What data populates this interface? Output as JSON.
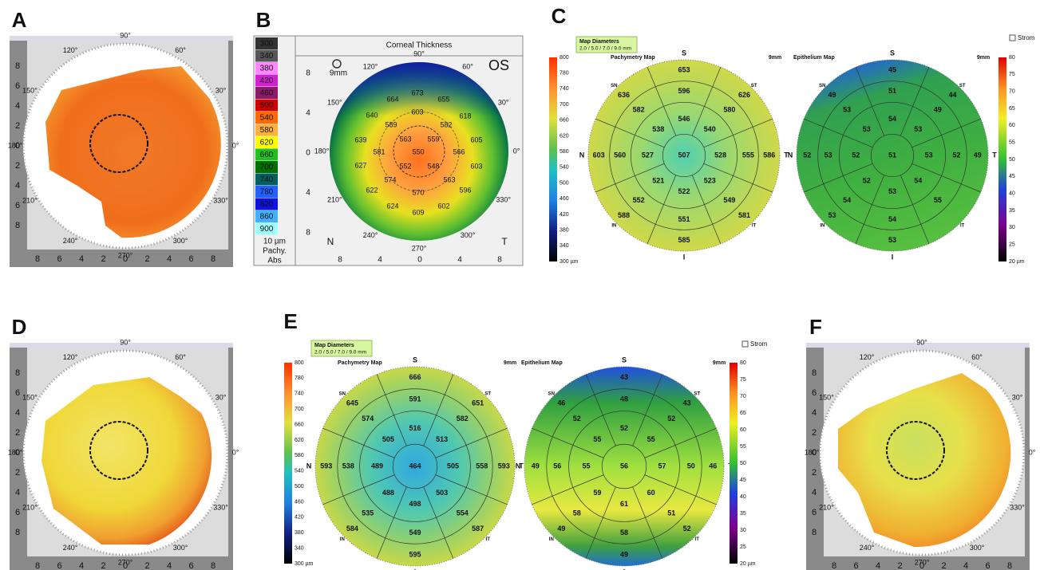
{
  "panels": {
    "A": {
      "letter": "A",
      "angles": [
        "90°",
        "60°",
        "30°",
        "0°",
        "330°",
        "300°",
        "270°",
        "240°",
        "210°",
        "180°",
        "150°",
        "120°"
      ],
      "xticks": [
        8,
        6,
        4,
        2,
        0,
        2,
        4,
        6,
        8
      ],
      "yticks": [
        8,
        6,
        4,
        2,
        0,
        2,
        4,
        6,
        8
      ]
    },
    "B": {
      "letter": "B",
      "title": "Corneal Thickness",
      "eye": "OS",
      "zoom": "9mm",
      "scale": [
        300,
        340,
        380,
        420,
        460,
        500,
        540,
        580,
        620,
        660,
        700,
        740,
        780,
        820,
        860,
        900
      ],
      "step": "10 µm",
      "mode": "Pachy.",
      "ref": "Abs",
      "angles": [
        "90°",
        "60°",
        "30°",
        "0°",
        "330°",
        "300°",
        "270°",
        "240°",
        "210°",
        "180°",
        "150°",
        "120°"
      ],
      "xticks": [
        8,
        4,
        0,
        4,
        8
      ],
      "yticks": [
        8,
        4,
        0,
        4,
        8
      ],
      "nasal": "N",
      "temporal": "T",
      "values": [
        673,
        664,
        655,
        640,
        603,
        618,
        589,
        582,
        639,
        563,
        559,
        605,
        581,
        550,
        566,
        627,
        552,
        548,
        603,
        574,
        563,
        622,
        570,
        596,
        624,
        602,
        609
      ]
    },
    "C": {
      "letter": "C",
      "diameters_title": "Map Diameters",
      "diameters": "2.0 / 5.0 / 7.0 / 9.0 mm",
      "stroma": "Strom",
      "pachy": {
        "title": "Pachymetry Map",
        "zoom": "9mm",
        "scale": [
          800,
          780,
          740,
          700,
          660,
          620,
          580,
          540,
          500,
          460,
          420,
          380,
          340,
          "300 µm"
        ],
        "sectors": [
          "S",
          "ST",
          "T",
          "IT",
          "I",
          "IN",
          "N",
          "SN"
        ],
        "center": 507,
        "inner": [
          546,
          540,
          528,
          523,
          522,
          521,
          527,
          538
        ],
        "mid": [
          596,
          580,
          555,
          549,
          551,
          552,
          560,
          582
        ],
        "outer": [
          653,
          626,
          586,
          581,
          585,
          588,
          603,
          636
        ]
      },
      "epi": {
        "title": "Epithelium Map",
        "zoom": "9mm",
        "scale": [
          80,
          75,
          70,
          65,
          60,
          55,
          50,
          45,
          40,
          35,
          30,
          25,
          "20 µm"
        ],
        "sectors": [
          "S",
          "ST",
          "T",
          "IT",
          "I",
          "IN",
          "N",
          "SN"
        ],
        "center": 51,
        "inner": [
          54,
          53,
          53,
          54,
          53,
          52,
          52,
          53
        ],
        "mid": [
          51,
          49,
          52,
          55,
          54,
          54,
          53,
          53
        ],
        "outer": [
          45,
          44,
          49,
          null,
          53,
          53,
          52,
          49
        ]
      }
    },
    "D": {
      "letter": "D",
      "angles": [
        "90°",
        "60°",
        "30°",
        "0°",
        "330°",
        "300°",
        "270°",
        "240°",
        "210°",
        "180°",
        "150°",
        "120°"
      ],
      "xticks": [
        8,
        6,
        4,
        2,
        0,
        2,
        4,
        6,
        8
      ],
      "yticks": [
        8,
        6,
        4,
        2,
        0,
        2,
        4,
        6,
        8
      ]
    },
    "E": {
      "letter": "E",
      "diameters_title": "Map Diameters",
      "diameters": "2.0 / 5.0 / 7.0 / 9.0 mm",
      "stroma": "Strom",
      "pachy": {
        "title": "Pachymetry Map",
        "zoom": "9mm",
        "scale": [
          800,
          780,
          740,
          700,
          660,
          620,
          580,
          540,
          500,
          460,
          420,
          380,
          340,
          "300 µm"
        ],
        "sectors": [
          "S",
          "ST",
          "T",
          "IT",
          "I",
          "IN",
          "N",
          "SN"
        ],
        "center": 464,
        "inner": [
          516,
          513,
          505,
          503,
          498,
          488,
          489,
          505
        ],
        "mid": [
          591,
          582,
          558,
          554,
          549,
          535,
          538,
          574
        ],
        "outer": [
          666,
          651,
          593,
          587,
          595,
          584,
          593,
          645
        ]
      },
      "epi": {
        "title": "Epithelium Map",
        "zoom": "9mm",
        "scale": [
          80,
          75,
          70,
          65,
          60,
          55,
          50,
          45,
          40,
          35,
          30,
          25,
          "20 µm"
        ],
        "sectors": [
          "S",
          "ST",
          "T",
          "IT",
          "I",
          "IN",
          "N",
          "SN"
        ],
        "center": 56,
        "inner": [
          52,
          55,
          57,
          60,
          61,
          59,
          55,
          55
        ],
        "mid": [
          48,
          52,
          50,
          51,
          58,
          58,
          56,
          52
        ],
        "outer": [
          43,
          43,
          46,
          52,
          49,
          49,
          49,
          46
        ]
      }
    },
    "F": {
      "letter": "F",
      "angles": [
        "90°",
        "60°",
        "30°",
        "0°",
        "330°",
        "300°",
        "270°",
        "240°",
        "210°",
        "180°",
        "150°",
        "120°"
      ],
      "xticks": [
        8,
        6,
        4,
        2,
        0,
        2,
        4,
        6,
        8
      ],
      "yticks": [
        8,
        6,
        4,
        2,
        0,
        2,
        4,
        6,
        8
      ]
    }
  }
}
